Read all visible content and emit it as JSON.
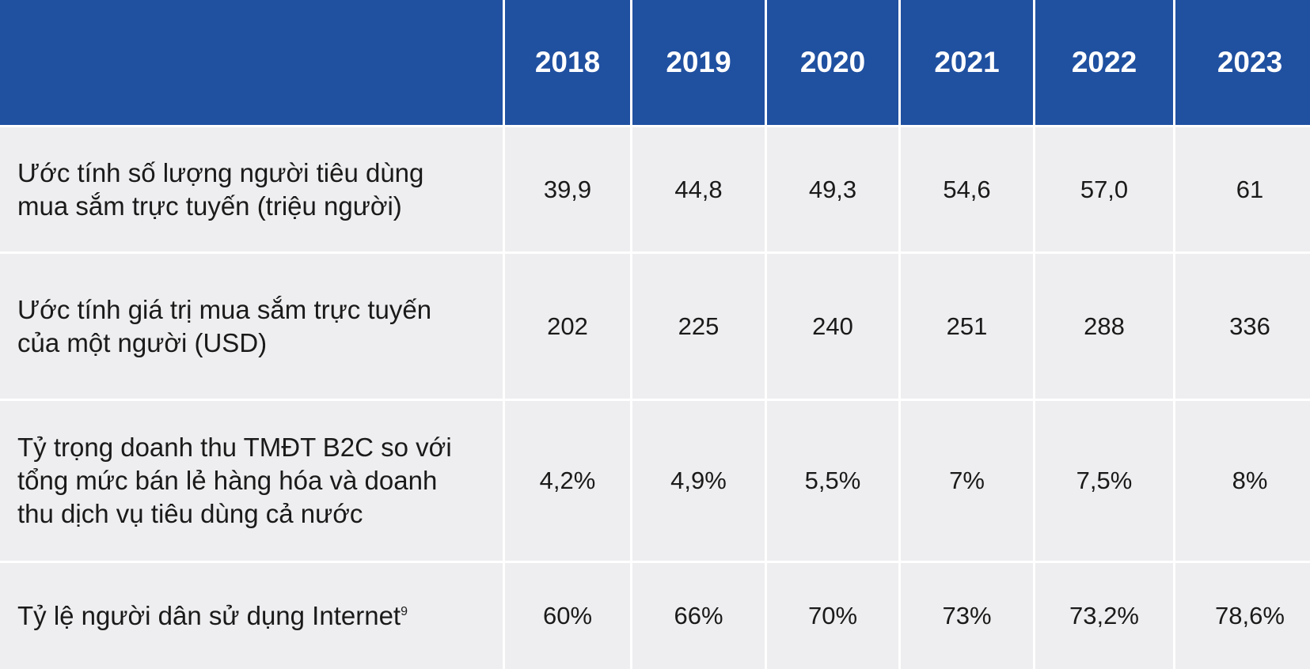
{
  "table": {
    "header": {
      "label": "",
      "years": [
        "2018",
        "2019",
        "2020",
        "2021",
        "2022",
        "2023"
      ]
    },
    "rows": [
      {
        "label": "Ước tính số lượng người tiêu dùng mua sắm trực tuyến (triệu người)",
        "values": [
          "39,9",
          "44,8",
          "49,3",
          "54,6",
          "57,0",
          "61"
        ]
      },
      {
        "label": "Ước tính giá trị mua sắm trực tuyến của một người (USD)",
        "values": [
          "202",
          "225",
          "240",
          "251",
          "288",
          "336"
        ]
      },
      {
        "label": "Tỷ trọng doanh thu TMĐT B2C so với tổng mức bán lẻ hàng hóa và doanh thu dịch vụ tiêu dùng cả nước",
        "values": [
          "4,2%",
          "4,9%",
          "5,5%",
          "7%",
          "7,5%",
          "8%"
        ]
      },
      {
        "label": "Tỷ lệ người dân sử dụng Internet",
        "footnote": "9",
        "values": [
          "60%",
          "66%",
          "70%",
          "73%",
          "73,2%",
          "78,6%"
        ]
      }
    ]
  },
  "colors": {
    "header_bg": "#2050a0",
    "header_text": "#ffffff",
    "row_bg": "#eeeef0",
    "grid_lines": "#ffffff"
  }
}
